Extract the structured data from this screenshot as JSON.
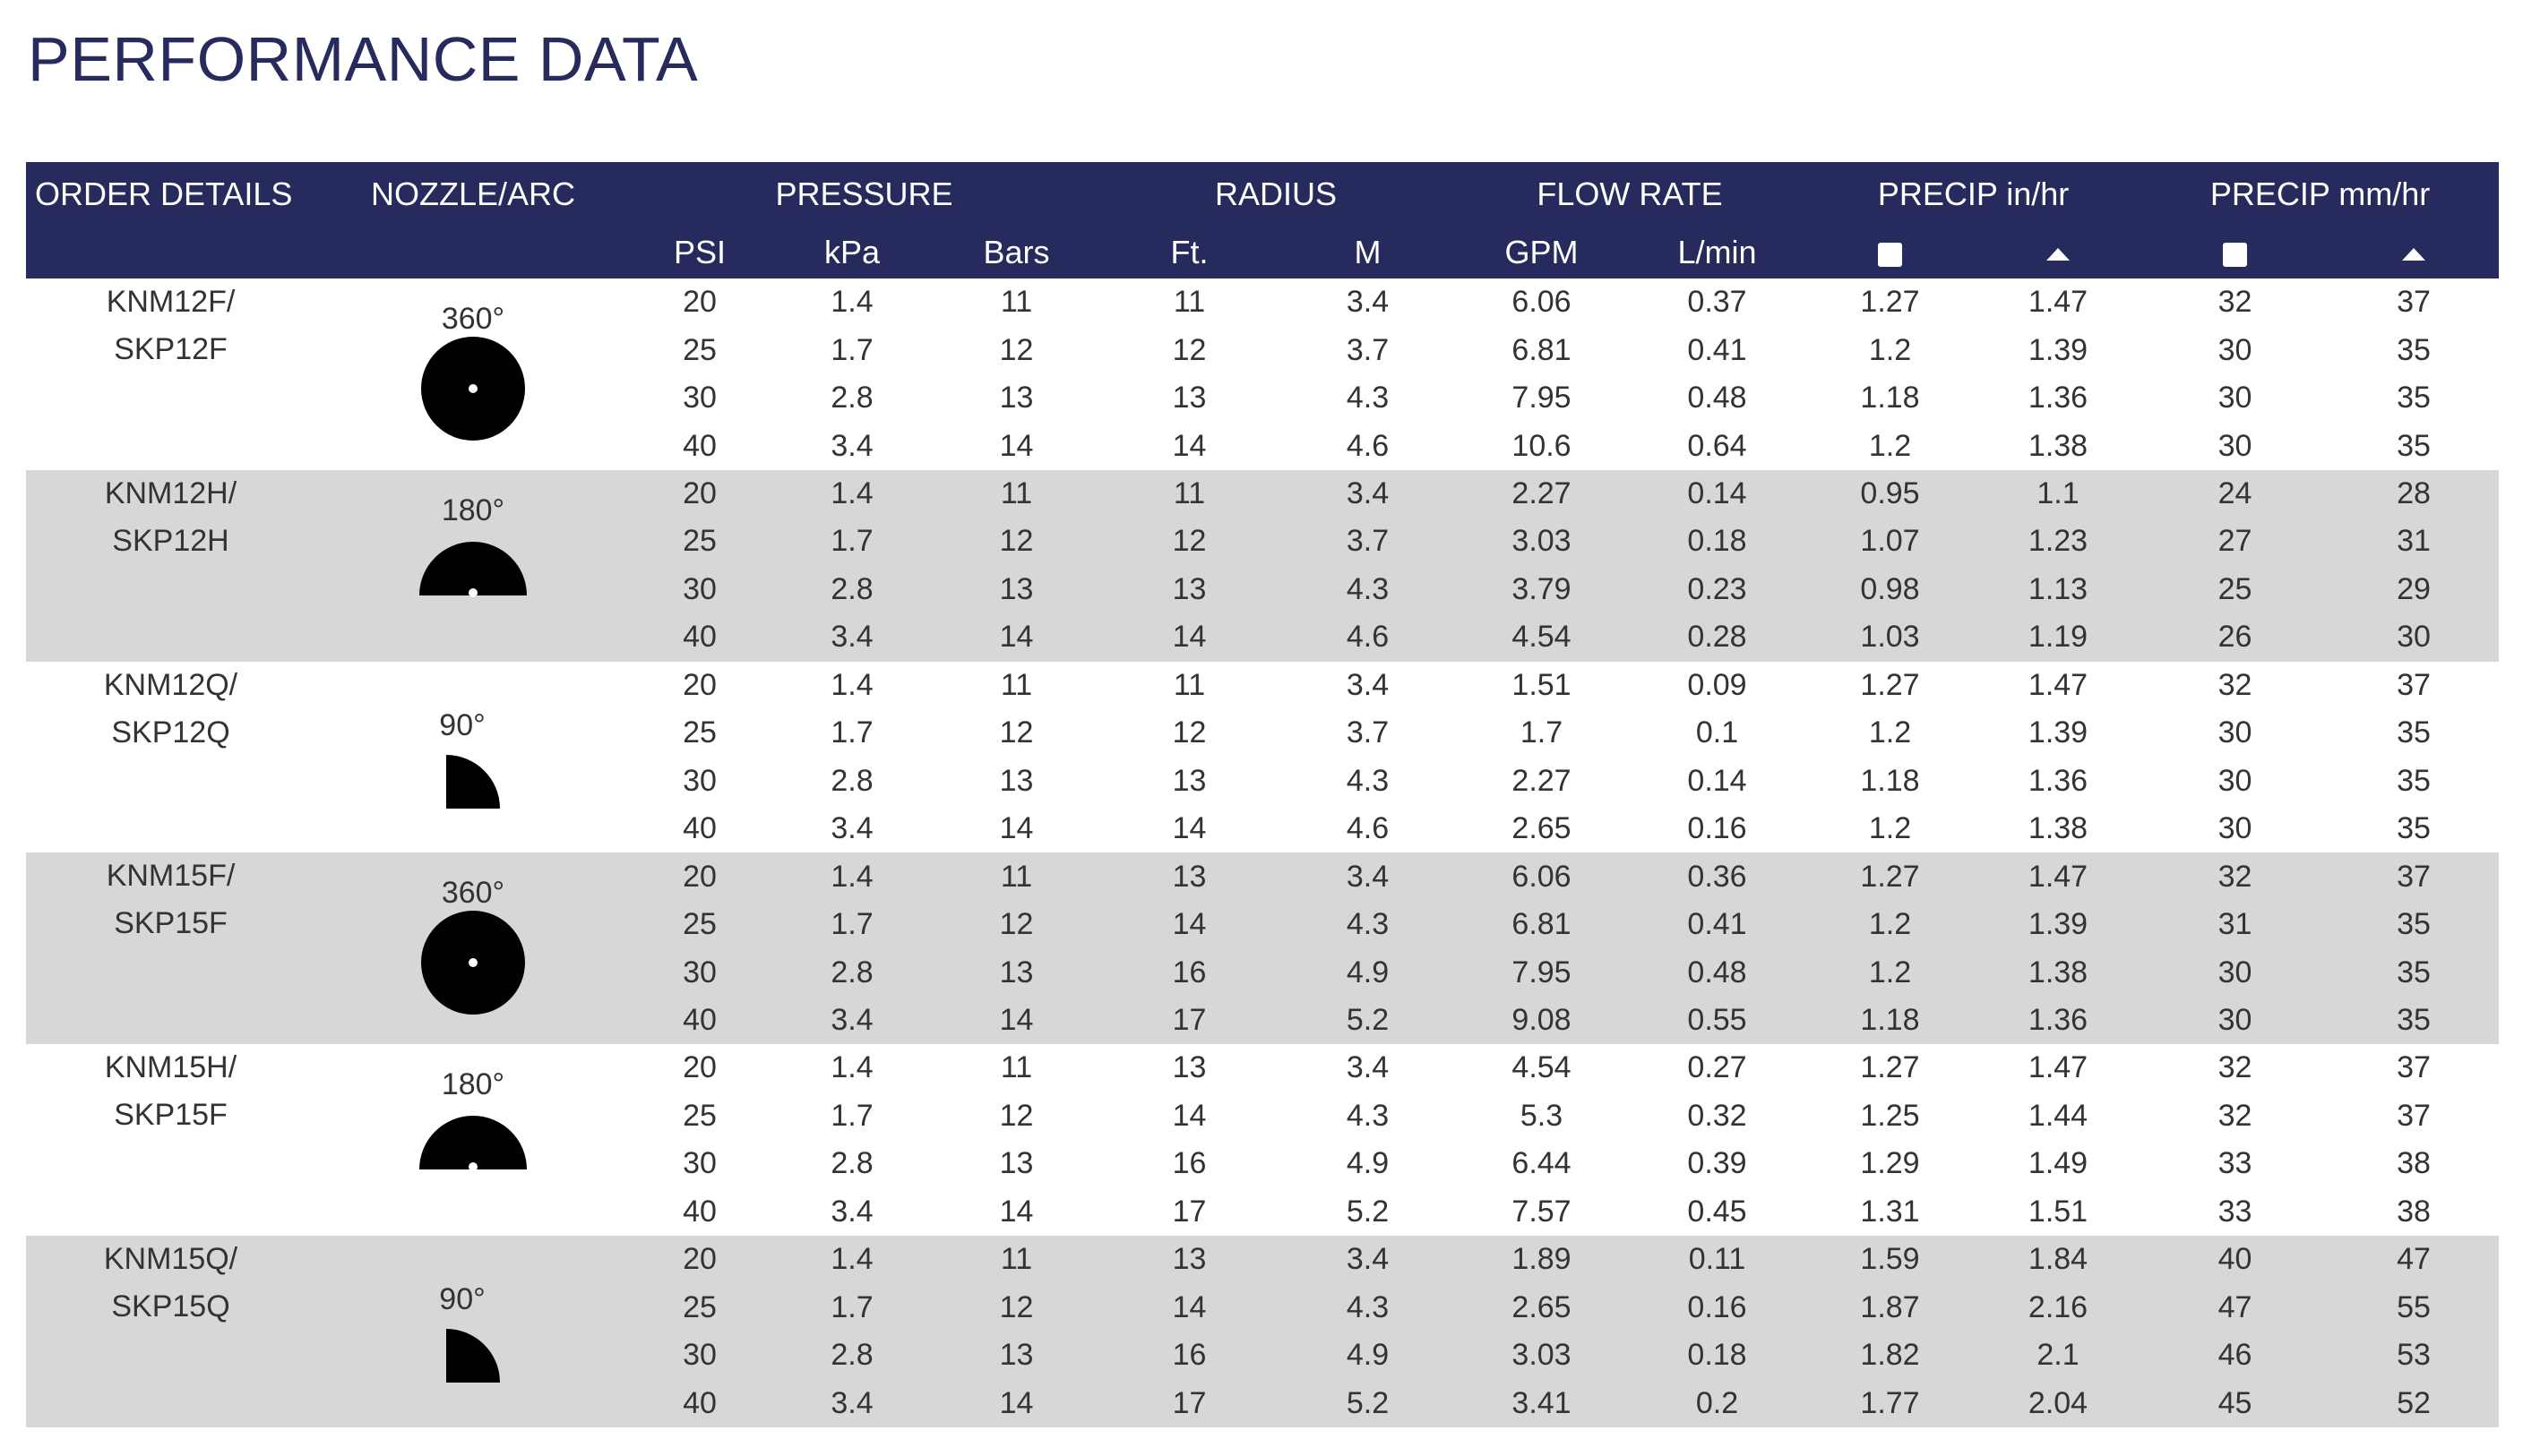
{
  "title": "PERFORMANCE DATA",
  "headers": {
    "order": "ORDER DETAILS",
    "nozzle": "NOZZLE/ARC",
    "pressure": "PRESSURE",
    "radius": "RADIUS",
    "flow": "FLOW RATE",
    "precip_in": "PRECIP in/hr",
    "precip_mm": "PRECIP mm/hr",
    "psi": "PSI",
    "kpa": "kPa",
    "bars": "Bars",
    "ft": "Ft.",
    "m": "M",
    "gpm": "GPM",
    "lmin": "L/min",
    "precip_symbols": [
      "square-icon",
      "triangle-icon"
    ]
  },
  "colors": {
    "header_bg": "#262a5c",
    "shaded_row": "#d6d7d9",
    "title": "#262a5c"
  },
  "groups": [
    {
      "order_line1": "KNM12F/",
      "order_line2": "SKP12F",
      "arc": "360°",
      "arc_deg": 360,
      "shaded": false,
      "rows": [
        [
          "20",
          "1.4",
          "11",
          "11",
          "3.4",
          "6.06",
          "0.37",
          "1.27",
          "1.47",
          "32",
          "37"
        ],
        [
          "25",
          "1.7",
          "12",
          "12",
          "3.7",
          "6.81",
          "0.41",
          "1.2",
          "1.39",
          "30",
          "35"
        ],
        [
          "30",
          "2.8",
          "13",
          "13",
          "4.3",
          "7.95",
          "0.48",
          "1.18",
          "1.36",
          "30",
          "35"
        ],
        [
          "40",
          "3.4",
          "14",
          "14",
          "4.6",
          "10.6",
          "0.64",
          "1.2",
          "1.38",
          "30",
          "35"
        ]
      ]
    },
    {
      "order_line1": "KNM12H/",
      "order_line2": "SKP12H",
      "arc": "180°",
      "arc_deg": 180,
      "shaded": true,
      "rows": [
        [
          "20",
          "1.4",
          "11",
          "11",
          "3.4",
          "2.27",
          "0.14",
          "0.95",
          "1.1",
          "24",
          "28"
        ],
        [
          "25",
          "1.7",
          "12",
          "12",
          "3.7",
          "3.03",
          "0.18",
          "1.07",
          "1.23",
          "27",
          "31"
        ],
        [
          "30",
          "2.8",
          "13",
          "13",
          "4.3",
          "3.79",
          "0.23",
          "0.98",
          "1.13",
          "25",
          "29"
        ],
        [
          "40",
          "3.4",
          "14",
          "14",
          "4.6",
          "4.54",
          "0.28",
          "1.03",
          "1.19",
          "26",
          "30"
        ]
      ]
    },
    {
      "order_line1": "KNM12Q/",
      "order_line2": "SKP12Q",
      "arc": "90°",
      "arc_deg": 90,
      "shaded": false,
      "rows": [
        [
          "20",
          "1.4",
          "11",
          "11",
          "3.4",
          "1.51",
          "0.09",
          "1.27",
          "1.47",
          "32",
          "37"
        ],
        [
          "25",
          "1.7",
          "12",
          "12",
          "3.7",
          "1.7",
          "0.1",
          "1.2",
          "1.39",
          "30",
          "35"
        ],
        [
          "30",
          "2.8",
          "13",
          "13",
          "4.3",
          "2.27",
          "0.14",
          "1.18",
          "1.36",
          "30",
          "35"
        ],
        [
          "40",
          "3.4",
          "14",
          "14",
          "4.6",
          "2.65",
          "0.16",
          "1.2",
          "1.38",
          "30",
          "35"
        ]
      ]
    },
    {
      "order_line1": "KNM15F/",
      "order_line2": "SKP15F",
      "arc": "360°",
      "arc_deg": 360,
      "shaded": true,
      "rows": [
        [
          "20",
          "1.4",
          "11",
          "13",
          "3.4",
          "6.06",
          "0.36",
          "1.27",
          "1.47",
          "32",
          "37"
        ],
        [
          "25",
          "1.7",
          "12",
          "14",
          "4.3",
          "6.81",
          "0.41",
          "1.2",
          "1.39",
          "31",
          "35"
        ],
        [
          "30",
          "2.8",
          "13",
          "16",
          "4.9",
          "7.95",
          "0.48",
          "1.2",
          "1.38",
          "30",
          "35"
        ],
        [
          "40",
          "3.4",
          "14",
          "17",
          "5.2",
          "9.08",
          "0.55",
          "1.18",
          "1.36",
          "30",
          "35"
        ]
      ]
    },
    {
      "order_line1": "KNM15H/",
      "order_line2": "SKP15F",
      "arc": "180°",
      "arc_deg": 180,
      "shaded": false,
      "rows": [
        [
          "20",
          "1.4",
          "11",
          "13",
          "3.4",
          "4.54",
          "0.27",
          "1.27",
          "1.47",
          "32",
          "37"
        ],
        [
          "25",
          "1.7",
          "12",
          "14",
          "4.3",
          "5.3",
          "0.32",
          "1.25",
          "1.44",
          "32",
          "37"
        ],
        [
          "30",
          "2.8",
          "13",
          "16",
          "4.9",
          "6.44",
          "0.39",
          "1.29",
          "1.49",
          "33",
          "38"
        ],
        [
          "40",
          "3.4",
          "14",
          "17",
          "5.2",
          "7.57",
          "0.45",
          "1.31",
          "1.51",
          "33",
          "38"
        ]
      ]
    },
    {
      "order_line1": "KNM15Q/",
      "order_line2": "SKP15Q",
      "arc": "90°",
      "arc_deg": 90,
      "shaded": true,
      "rows": [
        [
          "20",
          "1.4",
          "11",
          "13",
          "3.4",
          "1.89",
          "0.11",
          "1.59",
          "1.84",
          "40",
          "47"
        ],
        [
          "25",
          "1.7",
          "12",
          "14",
          "4.3",
          "2.65",
          "0.16",
          "1.87",
          "2.16",
          "47",
          "55"
        ],
        [
          "30",
          "2.8",
          "13",
          "16",
          "4.9",
          "3.03",
          "0.18",
          "1.82",
          "2.1",
          "46",
          "53"
        ],
        [
          "40",
          "3.4",
          "14",
          "17",
          "5.2",
          "3.41",
          "0.2",
          "1.77",
          "2.04",
          "45",
          "52"
        ]
      ]
    }
  ]
}
